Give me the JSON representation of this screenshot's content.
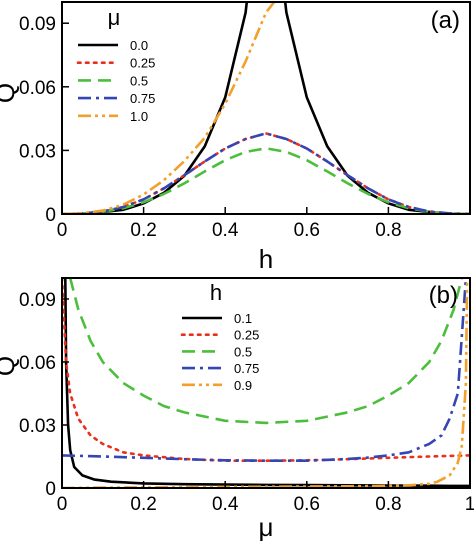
{
  "chart_data": [
    {
      "type": "line",
      "panel_label": "(a)",
      "xlabel": "h",
      "ylabel": "Q",
      "xlim": [
        0,
        1
      ],
      "ylim": [
        0,
        0.1
      ],
      "xticks": [
        0,
        0.2,
        0.4,
        0.6,
        0.8
      ],
      "xtick_labels": [
        "0",
        "0.2",
        "0.4",
        "0.6",
        "0.8"
      ],
      "yticks": [
        0,
        0.03,
        0.06,
        0.09
      ],
      "ytick_labels": [
        "0",
        "0.03",
        "0.06",
        "0.09"
      ],
      "legend_title": "μ",
      "legend_position": "top-left",
      "series": [
        {
          "name": "0.0",
          "color": "#000000",
          "dash": "solid",
          "x": [
            0.0,
            0.05,
            0.1,
            0.15,
            0.2,
            0.25,
            0.3,
            0.35,
            0.4,
            0.45,
            0.5,
            0.55,
            0.6,
            0.65,
            0.7,
            0.75,
            0.8,
            0.85,
            0.9,
            0.95,
            1.0
          ],
          "y": [
            0,
            0.0,
            0.001,
            0.002,
            0.005,
            0.01,
            0.018,
            0.032,
            0.055,
            0.095,
            0.18,
            0.095,
            0.055,
            0.032,
            0.018,
            0.01,
            0.005,
            0.002,
            0.001,
            0.0,
            0
          ]
        },
        {
          "name": "0.25",
          "color": "#e8301c",
          "dash": "dot",
          "x": [
            0.0,
            0.05,
            0.1,
            0.15,
            0.2,
            0.25,
            0.3,
            0.35,
            0.4,
            0.45,
            0.5,
            0.55,
            0.6,
            0.65,
            0.7,
            0.75,
            0.8,
            0.85,
            0.9,
            0.95,
            1.0
          ],
          "y": [
            0,
            0.0003,
            0.0012,
            0.0033,
            0.0069,
            0.0121,
            0.0183,
            0.0248,
            0.0309,
            0.0354,
            0.038,
            0.0354,
            0.0309,
            0.0248,
            0.0183,
            0.0121,
            0.0069,
            0.0033,
            0.0012,
            0.0003,
            0
          ]
        },
        {
          "name": "0.5",
          "color": "#4bbf3c",
          "dash": "dash",
          "x": [
            0.0,
            0.05,
            0.1,
            0.15,
            0.2,
            0.25,
            0.3,
            0.35,
            0.4,
            0.45,
            0.5,
            0.55,
            0.6,
            0.65,
            0.7,
            0.75,
            0.8,
            0.85,
            0.9,
            0.95,
            1.0
          ],
          "y": [
            0,
            0.0002,
            0.0011,
            0.0027,
            0.0055,
            0.0095,
            0.0145,
            0.0201,
            0.0254,
            0.0293,
            0.031,
            0.0293,
            0.0254,
            0.0201,
            0.0145,
            0.0095,
            0.0055,
            0.0027,
            0.0011,
            0.0002,
            0
          ]
        },
        {
          "name": "0.75",
          "color": "#3346b4",
          "dash": "dashdot",
          "x": [
            0.0,
            0.05,
            0.1,
            0.15,
            0.2,
            0.25,
            0.3,
            0.35,
            0.4,
            0.45,
            0.5,
            0.55,
            0.6,
            0.65,
            0.7,
            0.75,
            0.8,
            0.85,
            0.9,
            0.95,
            1.0
          ],
          "y": [
            0,
            0.0003,
            0.0012,
            0.0033,
            0.0069,
            0.0121,
            0.0183,
            0.0248,
            0.0309,
            0.0354,
            0.038,
            0.0354,
            0.0309,
            0.0248,
            0.0183,
            0.0121,
            0.0069,
            0.0033,
            0.0012,
            0.0003,
            0
          ]
        },
        {
          "name": "1.0",
          "color": "#f2a02c",
          "dash": "dashdotdot",
          "x": [
            0.0,
            0.05,
            0.1,
            0.15,
            0.2,
            0.25,
            0.3,
            0.35,
            0.4,
            0.45,
            0.5,
            0.52
          ],
          "y": [
            0,
            0.0004,
            0.0016,
            0.0044,
            0.0092,
            0.016,
            0.025,
            0.036,
            0.052,
            0.072,
            0.095,
            0.1
          ]
        }
      ]
    },
    {
      "type": "line",
      "panel_label": "(b)",
      "xlabel": "μ",
      "ylabel": "Q",
      "xlim": [
        0,
        1
      ],
      "ylim": [
        0,
        0.1
      ],
      "xticks": [
        0,
        0.2,
        0.4,
        0.6,
        0.8,
        1
      ],
      "xtick_labels": [
        "0",
        "0.2",
        "0.4",
        "0.6",
        "0.8",
        "1"
      ],
      "yticks": [
        0,
        0.03,
        0.06,
        0.09
      ],
      "ytick_labels": [
        "0",
        "0.03",
        "0.06",
        "0.09"
      ],
      "legend_title": "h",
      "legend_position": "top-center",
      "series": [
        {
          "name": "0.1",
          "color": "#000000",
          "dash": "solid",
          "x": [
            0.008,
            0.01,
            0.015,
            0.02,
            0.03,
            0.05,
            0.08,
            0.12,
            0.2,
            0.3,
            0.4,
            0.5,
            0.6,
            0.7,
            0.8,
            0.9,
            0.95,
            1.0
          ],
          "y": [
            0.1,
            0.06,
            0.03,
            0.018,
            0.01,
            0.006,
            0.004,
            0.003,
            0.0022,
            0.0018,
            0.0016,
            0.0015,
            0.0014,
            0.0013,
            0.0012,
            0.0011,
            0.001,
            0.001
          ]
        },
        {
          "name": "0.25",
          "color": "#e8301c",
          "dash": "dot",
          "x": [
            0.0,
            0.01,
            0.02,
            0.04,
            0.07,
            0.1,
            0.15,
            0.2,
            0.3,
            0.4,
            0.5,
            0.6,
            0.7,
            0.8,
            0.9,
            0.95,
            1.0
          ],
          "y": [
            0.1,
            0.06,
            0.045,
            0.033,
            0.025,
            0.021,
            0.017,
            0.0155,
            0.0138,
            0.013,
            0.013,
            0.0132,
            0.0137,
            0.0144,
            0.015,
            0.0153,
            0.0155
          ]
        },
        {
          "name": "0.5",
          "color": "#4bbf3c",
          "dash": "dash",
          "x": [
            0.02,
            0.04,
            0.07,
            0.1,
            0.15,
            0.2,
            0.25,
            0.3,
            0.4,
            0.5,
            0.6,
            0.7,
            0.75,
            0.8,
            0.85,
            0.9,
            0.93,
            0.96,
            0.98
          ],
          "y": [
            0.1,
            0.085,
            0.07,
            0.06,
            0.05,
            0.044,
            0.039,
            0.036,
            0.032,
            0.031,
            0.032,
            0.036,
            0.039,
            0.044,
            0.05,
            0.06,
            0.07,
            0.085,
            0.1
          ]
        },
        {
          "name": "0.75",
          "color": "#3346b4",
          "dash": "dashdot",
          "x": [
            0.0,
            0.1,
            0.2,
            0.3,
            0.4,
            0.5,
            0.6,
            0.7,
            0.75,
            0.8,
            0.85,
            0.9,
            0.93,
            0.95,
            0.97,
            0.99
          ],
          "y": [
            0.0155,
            0.015,
            0.0144,
            0.0137,
            0.0132,
            0.013,
            0.013,
            0.0138,
            0.0145,
            0.0155,
            0.017,
            0.021,
            0.025,
            0.033,
            0.045,
            0.1
          ]
        },
        {
          "name": "0.9",
          "color": "#f2a02c",
          "dash": "dashdotdot",
          "x": [
            0.0,
            0.1,
            0.2,
            0.3,
            0.4,
            0.5,
            0.6,
            0.7,
            0.8,
            0.85,
            0.9,
            0.92,
            0.95,
            0.97,
            0.98,
            0.99,
            0.993
          ],
          "y": [
            0.0,
            0.0002,
            0.0003,
            0.0004,
            0.0005,
            0.0006,
            0.0007,
            0.0008,
            0.001,
            0.0013,
            0.002,
            0.003,
            0.006,
            0.012,
            0.02,
            0.05,
            0.1
          ]
        }
      ]
    }
  ]
}
